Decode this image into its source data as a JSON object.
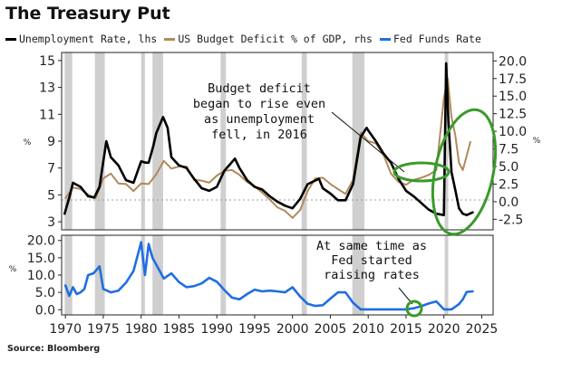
{
  "title": "The Treasury Put",
  "source": "Source: Bloomberg",
  "colors": {
    "unemployment": "#000000",
    "deficit": "#b08a5a",
    "fed": "#1f6fe0",
    "recession": "#cfcfcf",
    "highlight": "#3a9a2a"
  },
  "chart_data": [
    {
      "type": "line",
      "legend_position": "top",
      "series": [
        {
          "name": "Unemployment Rate, lhs",
          "axis": "left",
          "x": [
            1969.9,
            1970.5,
            1971,
            1972,
            1973,
            1973.8,
            1974.5,
            1975.4,
            1976,
            1977,
            1978,
            1979,
            1980,
            1980.6,
            1981,
            1981.6,
            1982,
            1982.9,
            1983.5,
            1984,
            1985,
            1986,
            1987,
            1988,
            1989,
            1990,
            1991,
            1992.4,
            1993,
            1994,
            1995,
            1996,
            1997,
            1998,
            1999,
            2000,
            2001,
            2002,
            2003.5,
            2004,
            2005,
            2006,
            2007,
            2008,
            2009,
            2009.8,
            2010,
            2011,
            2012,
            2013,
            2014,
            2015,
            2016,
            2017,
            2018,
            2019,
            2020.0,
            2020.3,
            2020.6,
            2021,
            2021.5,
            2022,
            2022.5,
            2023,
            2023.8
          ],
          "values": [
            3.6,
            4.8,
            5.9,
            5.6,
            4.9,
            4.8,
            5.6,
            9.0,
            7.8,
            7.2,
            6.1,
            5.9,
            7.5,
            7.4,
            7.4,
            8.6,
            9.6,
            10.8,
            10.0,
            7.8,
            7.2,
            7.0,
            6.2,
            5.5,
            5.3,
            5.6,
            6.8,
            7.7,
            7.0,
            6.1,
            5.6,
            5.4,
            4.9,
            4.5,
            4.2,
            4.0,
            4.7,
            5.8,
            6.2,
            5.5,
            5.1,
            4.6,
            4.6,
            5.8,
            9.3,
            10.0,
            9.8,
            9.0,
            8.1,
            7.4,
            6.2,
            5.3,
            4.9,
            4.4,
            3.9,
            3.6,
            3.5,
            14.8,
            10.5,
            6.7,
            5.4,
            4.0,
            3.6,
            3.5,
            3.7
          ]
        },
        {
          "name": "US Budget Deficit % of GDP, rhs",
          "axis": "right",
          "x": [
            1970,
            1971,
            1972,
            1973,
            1974,
            1975,
            1976,
            1977,
            1978,
            1979,
            1980,
            1981,
            1982,
            1983,
            1984,
            1985,
            1986,
            1987,
            1988,
            1989,
            1990,
            1991,
            1992,
            1993,
            1994,
            1995,
            1996,
            1997,
            1998,
            1999,
            2000,
            2001,
            2002,
            2003,
            2004,
            2005,
            2006,
            2007,
            2008,
            2009,
            2010,
            2011,
            2012,
            2013,
            2014,
            2015,
            2016,
            2017,
            2018,
            2019,
            2020,
            2020.5,
            2021,
            2021.5,
            2022,
            2022.5,
            2023,
            2023.5
          ],
          "values": [
            0.5,
            2.0,
            1.8,
            1.0,
            0.5,
            3.3,
            4.0,
            2.6,
            2.5,
            1.5,
            2.6,
            2.5,
            3.9,
            5.8,
            4.7,
            5.0,
            5.0,
            3.1,
            3.0,
            2.7,
            3.7,
            4.4,
            4.5,
            3.8,
            2.8,
            2.2,
            1.3,
            0.3,
            -0.8,
            -1.3,
            -2.3,
            -1.2,
            1.5,
            3.3,
            3.4,
            2.5,
            1.8,
            1.1,
            3.1,
            9.8,
            8.6,
            8.3,
            6.7,
            4.0,
            2.8,
            2.4,
            3.1,
            3.4,
            3.8,
            4.5,
            14.7,
            17.5,
            12.0,
            9.5,
            5.5,
            4.5,
            6.5,
            8.5
          ]
        },
        {
          "name": "Fed Funds Rate",
          "axis": "bottom-panel",
          "x": [
            1970,
            1970.5,
            1971,
            1971.5,
            1972,
            1972.5,
            1973,
            1973.7,
            1974.5,
            1975,
            1976,
            1977,
            1978,
            1979,
            1980,
            1980.5,
            1981,
            1981.5,
            1982,
            1983,
            1984,
            1985,
            1986,
            1987,
            1988,
            1989,
            1990,
            1991,
            1992,
            1993,
            1994,
            1995,
            1996,
            1997,
            1998,
            1999,
            2000,
            2001,
            2002,
            2003,
            2004,
            2005,
            2006,
            2007,
            2008,
            2009,
            2015,
            2016,
            2017,
            2018,
            2019,
            2020,
            2021,
            2022,
            2022.5,
            2023,
            2023.8
          ],
          "values": [
            7.0,
            4.0,
            6.5,
            4.5,
            5.0,
            6.0,
            10.0,
            10.5,
            12.5,
            6.0,
            5.0,
            5.5,
            7.8,
            11.2,
            19.5,
            10.0,
            19.0,
            15.0,
            13.0,
            9.0,
            10.5,
            8.0,
            6.5,
            6.8,
            7.6,
            9.2,
            8.1,
            5.7,
            3.5,
            3.0,
            4.5,
            5.8,
            5.3,
            5.5,
            5.3,
            5.0,
            6.5,
            3.8,
            1.7,
            1.1,
            1.3,
            3.2,
            5.0,
            5.0,
            2.0,
            0.1,
            0.1,
            0.4,
            1.0,
            1.8,
            2.4,
            0.1,
            0.1,
            1.6,
            3.0,
            5.1,
            5.3
          ]
        }
      ],
      "recessions": [
        [
          1969.9,
          1970.9
        ],
        [
          1973.9,
          1975.2
        ],
        [
          1980.0,
          1980.5
        ],
        [
          1981.5,
          1982.9
        ],
        [
          1990.5,
          1991.2
        ],
        [
          2001.2,
          2001.9
        ],
        [
          2007.9,
          2009.5
        ],
        [
          2020.1,
          2020.4
        ]
      ],
      "x_range": [
        1969.5,
        2026.5
      ],
      "x_ticks": [
        "1970",
        "1975",
        "1980",
        "1985",
        "1990",
        "1995",
        "2000",
        "2005",
        "2010",
        "2015",
        "2020",
        "2025"
      ],
      "left_axis": {
        "range": [
          2.4,
          15.6
        ],
        "ticks": [
          "15",
          "13",
          "11",
          "9",
          "7",
          "5",
          "3"
        ],
        "label": "%"
      },
      "right_axis": {
        "range": [
          -4.0,
          21.2
        ],
        "ticks": [
          "20.0",
          "17.5",
          "15.0",
          "12.5",
          "10.0",
          "7.5",
          "5.0",
          "2.5",
          "0.0",
          "-2.5"
        ],
        "label": "%"
      },
      "bottom_axis": {
        "range": [
          -1.5,
          21.5
        ],
        "ticks": [
          "20.0",
          "15.0",
          "10.0",
          "5.0",
          "0.0"
        ],
        "label": "%"
      },
      "annotations": [
        {
          "lines": [
            "Budget deficit",
            "began to rise even",
            "as unemployment",
            "fell, in 2016"
          ]
        },
        {
          "lines": [
            "At same time as",
            "Fed started",
            "raising rates"
          ]
        }
      ]
    }
  ]
}
